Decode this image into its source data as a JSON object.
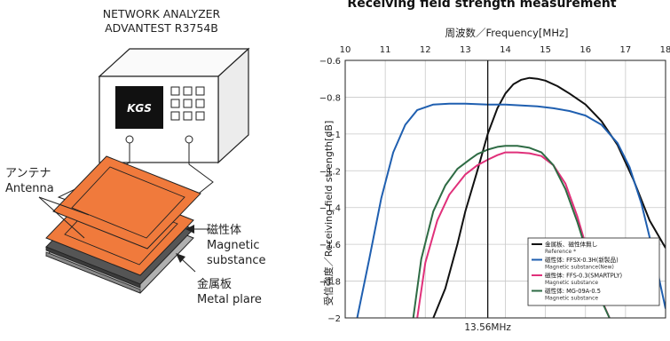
{
  "illustration": {
    "instrument_line1": "NETWORK ANALYZER",
    "instrument_line2": "ADVANTEST R3754B",
    "logo": "KGS",
    "antenna_jp": "アンテナ",
    "antenna_en": "Antenna",
    "magnetic_jp": "磁性体",
    "magnetic_en1": "Magnetic",
    "magnetic_en2": "substance",
    "metal_jp": "金属板",
    "metal_en": "Metal plare",
    "colors": {
      "antenna": "#f07a3c",
      "magnetic": "#555555",
      "metal": "#b0b0b0",
      "outline": "#222222"
    }
  },
  "chart_data": {
    "type": "line",
    "title": "Receiving field strength measurement",
    "xlabel": "周波数／Frequency[MHz]",
    "ylabel": "受信強度／Receiving field strength[dB]",
    "xlim": [
      10,
      18
    ],
    "ylim": [
      -2.0,
      -0.6
    ],
    "x_ticks": [
      10,
      11,
      12,
      13,
      14,
      15,
      16,
      17,
      18
    ],
    "y_ticks": [
      -0.6,
      -0.8,
      -1.0,
      -1.2,
      -1.4,
      -1.6,
      -1.8,
      -2.0
    ],
    "y_tick_labels": [
      "−0.6",
      "−0.8",
      "−1",
      "−1.2",
      "−1.4",
      "−1.6",
      "−1.8",
      "−2"
    ],
    "grid": true,
    "marker_line": {
      "x": 13.56,
      "label": "13.56MHz"
    },
    "legend_position": "bottom-right",
    "series": [
      {
        "name": "金属板、磁性体無し",
        "sublabel": "Reference *",
        "color": "#111111",
        "x": [
          12.2,
          12.5,
          12.8,
          13.0,
          13.3,
          13.56,
          13.8,
          14.0,
          14.2,
          14.4,
          14.6,
          14.8,
          15.0,
          15.3,
          15.6,
          16.0,
          16.4,
          16.8,
          17.2,
          17.6,
          18.0
        ],
        "y": [
          -2.0,
          -1.84,
          -1.6,
          -1.42,
          -1.2,
          -1.0,
          -0.86,
          -0.78,
          -0.73,
          -0.705,
          -0.695,
          -0.7,
          -0.71,
          -0.74,
          -0.78,
          -0.84,
          -0.93,
          -1.06,
          -1.25,
          -1.47,
          -1.62
        ]
      },
      {
        "name": "磁性体: FFSX-0.3H(新製品)",
        "sublabel": "Magnetic substance(New)",
        "color": "#1f5fb0",
        "x": [
          10.3,
          10.6,
          10.9,
          11.2,
          11.5,
          11.8,
          12.2,
          12.6,
          13.0,
          13.56,
          14.0,
          14.4,
          14.8,
          15.2,
          15.6,
          16.0,
          16.4,
          16.8,
          17.1,
          17.4,
          17.7,
          18.0
        ],
        "y": [
          -2.0,
          -1.68,
          -1.35,
          -1.1,
          -0.95,
          -0.87,
          -0.84,
          -0.835,
          -0.835,
          -0.84,
          -0.84,
          -0.845,
          -0.85,
          -0.86,
          -0.875,
          -0.9,
          -0.95,
          -1.05,
          -1.18,
          -1.38,
          -1.65,
          -1.95
        ]
      },
      {
        "name": "磁性体: FFS-0.3(SMARTPLY)",
        "sublabel": "Magnetic substance",
        "color": "#e0307a",
        "x": [
          11.8,
          12.0,
          12.3,
          12.6,
          13.0,
          13.3,
          13.56,
          13.8,
          14.0,
          14.3,
          14.6,
          14.9,
          15.2,
          15.5,
          15.8,
          16.0,
          16.3,
          16.6
        ],
        "y": [
          -2.0,
          -1.7,
          -1.47,
          -1.33,
          -1.22,
          -1.17,
          -1.14,
          -1.115,
          -1.1,
          -1.1,
          -1.105,
          -1.12,
          -1.17,
          -1.27,
          -1.45,
          -1.6,
          -1.85,
          -2.0
        ]
      },
      {
        "name": "磁性体: MG-09A-0.5",
        "sublabel": "Magnetic substance",
        "color": "#2e6b44",
        "x": [
          11.7,
          11.9,
          12.2,
          12.5,
          12.8,
          13.1,
          13.3,
          13.56,
          13.8,
          14.0,
          14.3,
          14.6,
          14.9,
          15.2,
          15.5,
          15.8,
          16.0,
          16.3,
          16.6
        ],
        "y": [
          -2.0,
          -1.68,
          -1.42,
          -1.28,
          -1.19,
          -1.14,
          -1.11,
          -1.085,
          -1.07,
          -1.065,
          -1.065,
          -1.075,
          -1.1,
          -1.17,
          -1.3,
          -1.48,
          -1.62,
          -1.86,
          -2.0
        ]
      }
    ]
  }
}
